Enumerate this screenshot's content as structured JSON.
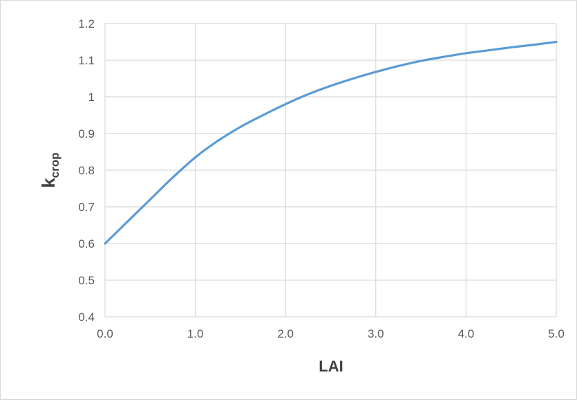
{
  "chart_data": {
    "type": "line",
    "title": "",
    "xlabel": "LAI",
    "ylabel": {
      "main": "k",
      "subscript": "crop"
    },
    "xlim": [
      0,
      5
    ],
    "ylim": [
      0.4,
      1.2
    ],
    "x_ticks": [
      "0.0",
      "1.0",
      "2.0",
      "3.0",
      "4.0",
      "5.0"
    ],
    "y_ticks": [
      "0.4",
      "0.5",
      "0.6",
      "0.7",
      "0.8",
      "0.9",
      "1",
      "1.1",
      "1.2"
    ],
    "grid": true,
    "legend": "none",
    "series": [
      {
        "color": "#5b9bd5",
        "x": [
          0,
          0.25,
          0.5,
          0.75,
          1.0,
          1.25,
          1.5,
          1.75,
          2.0,
          2.25,
          2.5,
          2.75,
          3.0,
          3.25,
          3.5,
          3.75,
          4.0,
          4.25,
          4.5,
          4.75,
          5.0
        ],
        "y": [
          0.6,
          0.66,
          0.72,
          0.78,
          0.835,
          0.88,
          0.918,
          0.95,
          0.98,
          1.007,
          1.03,
          1.05,
          1.068,
          1.084,
          1.098,
          1.109,
          1.119,
          1.127,
          1.135,
          1.142,
          1.15
        ]
      }
    ],
    "colors": {
      "grid": "#d9d9d9",
      "tick_text": "#595959",
      "axis_label_text": "#404040"
    }
  }
}
